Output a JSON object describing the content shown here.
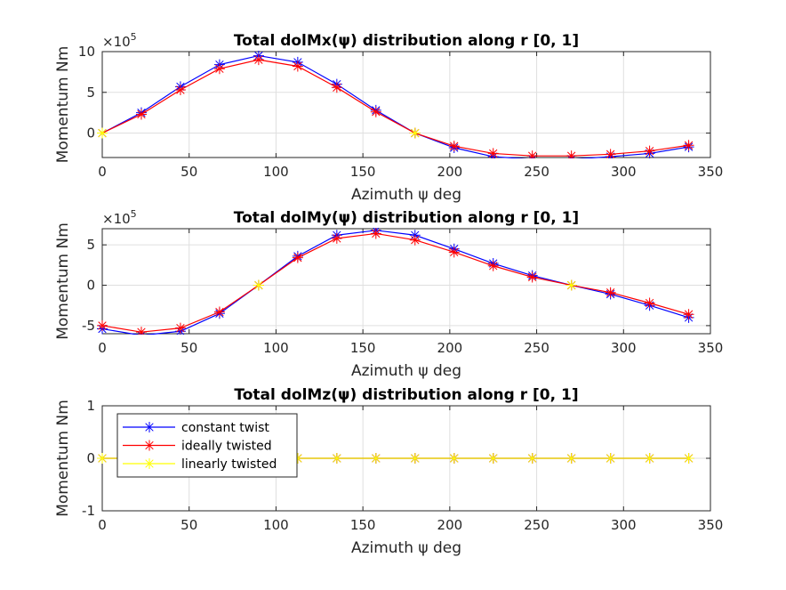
{
  "figure_background": "#ffffff",
  "chart_data": [
    {
      "type": "line",
      "title": "Total dolMx(ψ) distribution along r [0, 1]",
      "xlabel": "Azimuth ψ deg",
      "ylabel": "Momentum Nm",
      "y_exponent_label": "×10^5",
      "y_exponent_base": "×10",
      "y_exponent_power": "5",
      "xlim": [
        0,
        350
      ],
      "ylim": [
        -3,
        10
      ],
      "xticks": [
        0,
        50,
        100,
        150,
        200,
        250,
        300,
        350
      ],
      "yticks": [
        0,
        5,
        10
      ],
      "grid": true,
      "x": [
        0,
        22.5,
        45,
        67.5,
        90,
        112.5,
        135,
        157.5,
        180,
        202.5,
        225,
        247.5,
        270,
        292.5,
        315,
        337.5
      ],
      "series": [
        {
          "name": "constant twist",
          "color": "#0000ff",
          "values": [
            0,
            2.5,
            5.7,
            8.4,
            9.5,
            8.7,
            6.0,
            2.8,
            0,
            -1.8,
            -2.9,
            -3.2,
            -3.2,
            -2.9,
            -2.5,
            -1.7
          ]
        },
        {
          "name": "ideally twisted",
          "color": "#ff0000",
          "values": [
            0,
            2.3,
            5.3,
            7.9,
            9.0,
            8.2,
            5.6,
            2.6,
            0,
            -1.6,
            -2.5,
            -2.8,
            -2.8,
            -2.6,
            -2.2,
            -1.5
          ]
        },
        {
          "name": "linearly twisted",
          "color": "#ffff00",
          "values": [
            0,
            null,
            null,
            null,
            null,
            null,
            null,
            null,
            0,
            null,
            null,
            null,
            null,
            null,
            null,
            null
          ]
        }
      ]
    },
    {
      "type": "line",
      "title": "Total dolMy(ψ) distribution along r [0, 1]",
      "xlabel": "Azimuth ψ deg",
      "ylabel": "Momentum Nm",
      "y_exponent_label": "×10^5",
      "y_exponent_base": "×10",
      "y_exponent_power": "5",
      "xlim": [
        0,
        350
      ],
      "ylim": [
        -6,
        7
      ],
      "xticks": [
        0,
        50,
        100,
        150,
        200,
        250,
        300,
        350
      ],
      "yticks": [
        -5,
        0,
        5
      ],
      "grid": true,
      "x": [
        0,
        22.5,
        45,
        67.5,
        90,
        112.5,
        135,
        157.5,
        180,
        202.5,
        225,
        247.5,
        270,
        292.5,
        315,
        337.5
      ],
      "series": [
        {
          "name": "constant twist",
          "color": "#0000ff",
          "values": [
            -5.4,
            -6.2,
            -5.7,
            -3.5,
            0,
            3.6,
            6.2,
            6.8,
            6.2,
            4.5,
            2.7,
            1.2,
            0,
            -1.1,
            -2.5,
            -4.0
          ]
        },
        {
          "name": "ideally twisted",
          "color": "#ff0000",
          "values": [
            -5.0,
            -5.8,
            -5.3,
            -3.3,
            0,
            3.4,
            5.8,
            6.4,
            5.6,
            4.1,
            2.4,
            1.0,
            0,
            -0.9,
            -2.2,
            -3.6
          ]
        },
        {
          "name": "linearly twisted",
          "color": "#ffff00",
          "values": [
            null,
            null,
            null,
            null,
            0,
            null,
            null,
            null,
            null,
            null,
            null,
            null,
            0,
            null,
            null,
            null
          ]
        }
      ]
    },
    {
      "type": "line",
      "title": "Total dolMz(ψ) distribution along r [0, 1]",
      "xlabel": "Azimuth ψ deg",
      "ylabel": "Momentum Nm",
      "xlim": [
        0,
        350
      ],
      "ylim": [
        -1,
        1
      ],
      "xticks": [
        0,
        50,
        100,
        150,
        200,
        250,
        300,
        350
      ],
      "yticks": [
        -1,
        0,
        1
      ],
      "grid": true,
      "legend": {
        "position": "top-left",
        "entries": [
          "constant twist",
          "ideally twisted",
          "linearly twisted"
        ]
      },
      "x": [
        0,
        22.5,
        45,
        67.5,
        90,
        112.5,
        135,
        157.5,
        180,
        202.5,
        225,
        247.5,
        270,
        292.5,
        315,
        337.5
      ],
      "series": [
        {
          "name": "constant twist",
          "color": "#0000ff",
          "values": [
            0,
            0,
            0,
            0,
            0,
            0,
            0,
            0,
            0,
            0,
            0,
            0,
            0,
            0,
            0,
            0
          ]
        },
        {
          "name": "ideally twisted",
          "color": "#ff0000",
          "values": [
            0,
            0,
            0,
            0,
            0,
            0,
            0,
            0,
            0,
            0,
            0,
            0,
            0,
            0,
            0,
            0
          ]
        },
        {
          "name": "linearly twisted",
          "color": "#ffff00",
          "values": [
            0,
            0,
            0,
            0,
            0,
            0,
            0,
            0,
            0,
            0,
            0,
            0,
            0,
            0,
            0,
            0
          ]
        }
      ]
    }
  ]
}
